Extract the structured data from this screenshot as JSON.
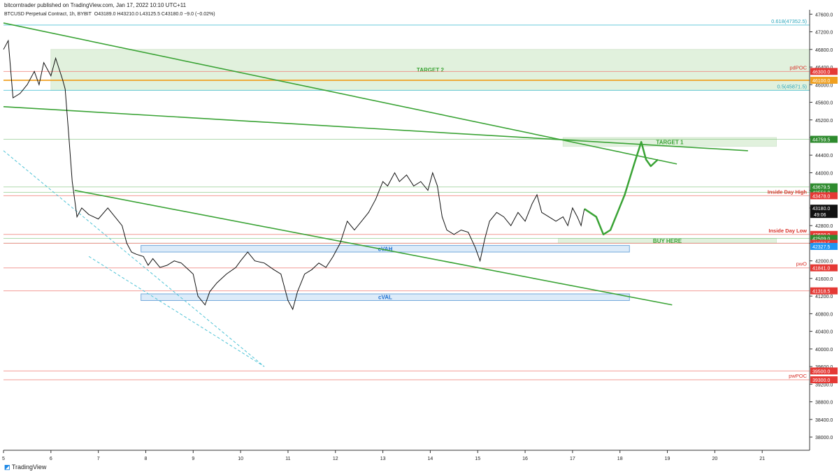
{
  "header": {
    "publisher": "bitcorntrader published on TradingView.com, Jan 17, 2022 10:10 UTC+11",
    "title": "BTCUSD Perpetual Contract, 1h, BYBIT",
    "ohlc": "O43189.0 H43210.0 L43125.5 C43180.0 −9.0 (−0.02%)"
  },
  "footer": {
    "brand": "TradingView"
  },
  "colors": {
    "green": "#3aa335",
    "red": "#e0372e",
    "cyan": "#4fc3d6",
    "orange": "#f0a020",
    "blue": "#2196f3",
    "zone_green": "#dcefd8",
    "zone_blue": "#d7e8f8"
  },
  "chart_data": {
    "type": "candlestick",
    "xlim": [
      5,
      22
    ],
    "ylim": [
      37700,
      47700
    ],
    "x_ticks": [
      "5",
      "6",
      "7",
      "8",
      "9",
      "10",
      "11",
      "12",
      "13",
      "14",
      "15",
      "16",
      "17",
      "18",
      "19",
      "20",
      "21"
    ],
    "y_ticks": [
      38000,
      38400,
      38800,
      39200,
      39600,
      40000,
      40400,
      40800,
      41200,
      41600,
      42000,
      42400,
      42800,
      43200,
      43600,
      44000,
      44400,
      44800,
      45200,
      45600,
      46000,
      46400,
      46800,
      47200,
      47600
    ],
    "last_price": {
      "value": "43180.0",
      "countdown": "49:06"
    },
    "price_path": [
      [
        5.0,
        46800
      ],
      [
        5.1,
        47000
      ],
      [
        5.2,
        45700
      ],
      [
        5.35,
        45800
      ],
      [
        5.5,
        46000
      ],
      [
        5.65,
        46300
      ],
      [
        5.75,
        46000
      ],
      [
        5.85,
        46500
      ],
      [
        6.0,
        46200
      ],
      [
        6.1,
        46600
      ],
      [
        6.25,
        46100
      ],
      [
        6.3,
        45900
      ],
      [
        6.38,
        44800
      ],
      [
        6.45,
        43800
      ],
      [
        6.5,
        43400
      ],
      [
        6.55,
        43000
      ],
      [
        6.65,
        43200
      ],
      [
        6.8,
        43050
      ],
      [
        7.0,
        42950
      ],
      [
        7.2,
        43200
      ],
      [
        7.35,
        43000
      ],
      [
        7.5,
        42800
      ],
      [
        7.6,
        42400
      ],
      [
        7.7,
        42200
      ],
      [
        7.8,
        42150
      ],
      [
        7.95,
        42100
      ],
      [
        8.05,
        41900
      ],
      [
        8.15,
        42050
      ],
      [
        8.3,
        41850
      ],
      [
        8.45,
        41900
      ],
      [
        8.6,
        42000
      ],
      [
        8.75,
        41950
      ],
      [
        8.9,
        41800
      ],
      [
        9.0,
        41700
      ],
      [
        9.1,
        41200
      ],
      [
        9.25,
        41000
      ],
      [
        9.35,
        41300
      ],
      [
        9.5,
        41500
      ],
      [
        9.7,
        41700
      ],
      [
        9.9,
        41850
      ],
      [
        10.0,
        42000
      ],
      [
        10.15,
        42200
      ],
      [
        10.3,
        42000
      ],
      [
        10.5,
        41950
      ],
      [
        10.7,
        41800
      ],
      [
        10.85,
        41700
      ],
      [
        11.0,
        41100
      ],
      [
        11.1,
        40900
      ],
      [
        11.2,
        41300
      ],
      [
        11.35,
        41700
      ],
      [
        11.5,
        41800
      ],
      [
        11.65,
        41950
      ],
      [
        11.8,
        41850
      ],
      [
        11.95,
        42100
      ],
      [
        12.1,
        42400
      ],
      [
        12.25,
        42900
      ],
      [
        12.4,
        42700
      ],
      [
        12.55,
        42900
      ],
      [
        12.7,
        43100
      ],
      [
        12.85,
        43400
      ],
      [
        13.0,
        43800
      ],
      [
        13.1,
        43700
      ],
      [
        13.25,
        44000
      ],
      [
        13.35,
        43800
      ],
      [
        13.5,
        43950
      ],
      [
        13.65,
        43700
      ],
      [
        13.8,
        43800
      ],
      [
        13.95,
        43600
      ],
      [
        14.05,
        44000
      ],
      [
        14.15,
        43700
      ],
      [
        14.25,
        43000
      ],
      [
        14.35,
        42700
      ],
      [
        14.5,
        42600
      ],
      [
        14.65,
        42700
      ],
      [
        14.8,
        42650
      ],
      [
        14.95,
        42300
      ],
      [
        15.05,
        42000
      ],
      [
        15.15,
        42500
      ],
      [
        15.25,
        42900
      ],
      [
        15.4,
        43100
      ],
      [
        15.55,
        43000
      ],
      [
        15.7,
        42800
      ],
      [
        15.85,
        43100
      ],
      [
        16.0,
        42900
      ],
      [
        16.15,
        43300
      ],
      [
        16.25,
        43500
      ],
      [
        16.35,
        43100
      ],
      [
        16.5,
        43000
      ],
      [
        16.65,
        42900
      ],
      [
        16.8,
        43000
      ],
      [
        16.9,
        42800
      ],
      [
        17.0,
        43200
      ],
      [
        17.1,
        43000
      ],
      [
        17.18,
        42800
      ],
      [
        17.25,
        43180
      ]
    ],
    "horizontal_levels": [
      {
        "price": 47352.5,
        "label": "0.618(47352.5)",
        "color": "cyan"
      },
      {
        "price": 46300,
        "label": "pdPOC",
        "badge": "46300.0",
        "color": "red"
      },
      {
        "price": 46100,
        "label": "",
        "badge": "46100.0",
        "color": "orange"
      },
      {
        "price": 45871.5,
        "label": "0.5(45871.5)",
        "color": "cyan"
      },
      {
        "price": 44759.5,
        "label": "",
        "badge": "44759.5",
        "color": "green"
      },
      {
        "price": 43679.5,
        "label": "",
        "badge": "43679.5",
        "color": "green"
      },
      {
        "price": 43556,
        "label": "",
        "badge": "43556.0",
        "color": "green"
      },
      {
        "price": 43478,
        "label": "Inside Day High",
        "badge": "43478.0",
        "color": "red"
      },
      {
        "price": 42600,
        "label": "Inside Day Low",
        "badge": "42600.0",
        "color": "red"
      },
      {
        "price": 42509,
        "label": "",
        "badge": "42509.0",
        "color": "green"
      },
      {
        "price": 42400,
        "label": "",
        "badge": "42400.0",
        "color": "green"
      },
      {
        "price": 42398.5,
        "label": "",
        "badge": "42398.5",
        "color": "red"
      },
      {
        "price": 42327.5,
        "label": "",
        "badge": "42327.5",
        "color": "blue"
      },
      {
        "price": 41841,
        "label": "pwO",
        "badge": "41841.0",
        "color": "red"
      },
      {
        "price": 41318.5,
        "label": "",
        "badge": "41318.5",
        "color": "red"
      },
      {
        "price": 39500,
        "label": "",
        "badge": "39500.0",
        "color": "red"
      },
      {
        "price": 39300,
        "label": "pwPOC",
        "badge": "39300.0",
        "color": "red"
      }
    ],
    "zones": [
      {
        "label": "TARGET 2",
        "x": [
          6.0,
          22.0
        ],
        "y": [
          45871.5,
          46800
        ],
        "color": "zone_green"
      },
      {
        "label": "TARGET 1",
        "x": [
          16.8,
          21.3
        ],
        "y": [
          44600,
          44800
        ],
        "color": "zone_green"
      },
      {
        "label": "BUY HERE",
        "x": [
          16.7,
          21.3
        ],
        "y": [
          42400,
          42509
        ],
        "color": "zone_green"
      },
      {
        "label": "cVAH",
        "x": [
          7.9,
          18.2
        ],
        "y": [
          42200,
          42350
        ],
        "color": "zone_blue"
      },
      {
        "label": "cVAL",
        "x": [
          7.9,
          18.2
        ],
        "y": [
          41100,
          41250
        ],
        "color": "zone_blue"
      }
    ],
    "trendlines": [
      {
        "from": [
          5.0,
          47400
        ],
        "to": [
          19.2,
          44200
        ],
        "color": "green"
      },
      {
        "from": [
          5.0,
          45500
        ],
        "to": [
          20.7,
          44500
        ],
        "color": "green"
      },
      {
        "from": [
          6.5,
          43600
        ],
        "to": [
          19.1,
          41000
        ],
        "color": "green"
      },
      {
        "from": [
          5.0,
          44500
        ],
        "to": [
          10.5,
          39600
        ],
        "color": "cyan",
        "dashed": true
      },
      {
        "from": [
          6.8,
          42100
        ],
        "to": [
          10.5,
          39600
        ],
        "color": "cyan",
        "dashed": true
      }
    ],
    "projection": [
      [
        17.25,
        43180
      ],
      [
        17.5,
        43000
      ],
      [
        17.65,
        42600
      ],
      [
        17.8,
        42700
      ],
      [
        17.95,
        43100
      ],
      [
        18.1,
        43500
      ],
      [
        18.3,
        44200
      ],
      [
        18.45,
        44700
      ],
      [
        18.55,
        44300
      ],
      [
        18.65,
        44150
      ],
      [
        18.8,
        44300
      ]
    ]
  }
}
